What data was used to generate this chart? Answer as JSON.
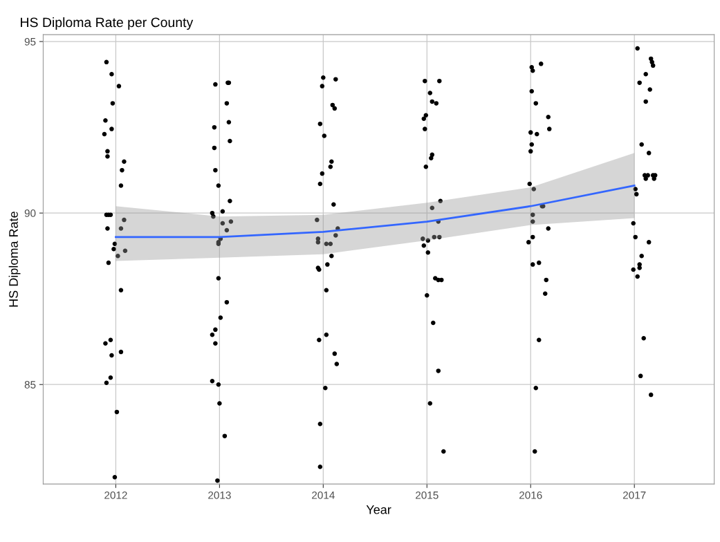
{
  "chart_data": {
    "type": "scatter",
    "title": "HS Diploma Rate per County",
    "xlabel": "Year",
    "ylabel": "HS Diploma Rate",
    "xlim": [
      2011.3,
      2017.77
    ],
    "ylim": [
      82.1,
      95.2
    ],
    "xticks": [
      2012,
      2013,
      2014,
      2015,
      2016,
      2017
    ],
    "yticks": [
      85,
      90,
      95
    ],
    "grid": true,
    "marker": "circle",
    "series": [
      {
        "color": "#000000",
        "x": [
          2011.91,
          2011.96,
          2012.03,
          2011.97,
          2011.9,
          2011.96,
          2011.89,
          2011.92,
          2011.92,
          2012.08,
          2012.06,
          2012.05,
          2011.91,
          2011.93,
          2011.95,
          2011.92,
          2012.08,
          2012.05,
          2011.99,
          2011.98,
          2012.09,
          2012.02,
          2011.93,
          2012.05,
          2011.95,
          2011.9,
          2011.96,
          2012.05,
          2011.95,
          2011.91,
          2012.01,
          2011.99,
          2013.08,
          2013.09,
          2012.96,
          2013.07,
          2013.09,
          2012.95,
          2013.1,
          2012.95,
          2012.96,
          2012.99,
          2013.1,
          2012.93,
          2013.03,
          2012.94,
          2013.11,
          2013.03,
          2013.07,
          2013.01,
          2012.99,
          2012.99,
          2012.99,
          2013.07,
          2013.01,
          2012.96,
          2012.93,
          2012.96,
          2012.93,
          2012.99,
          2013.0,
          2013.05,
          2012.98,
          2014.0,
          2014.12,
          2013.99,
          2014.09,
          2014.11,
          2013.97,
          2014.01,
          2014.08,
          2014.07,
          2013.99,
          2013.97,
          2014.1,
          2013.94,
          2014.14,
          2014.12,
          2013.95,
          2013.95,
          2014.03,
          2014.07,
          2014.08,
          2014.04,
          2013.96,
          2013.95,
          2014.03,
          2014.03,
          2013.96,
          2014.11,
          2014.13,
          2014.02,
          2013.97,
          2013.97,
          2014.98,
          2015.12,
          2015.03,
          2015.05,
          2015.09,
          2014.99,
          2014.97,
          2014.98,
          2015.05,
          2015.04,
          2014.99,
          2015.13,
          2015.05,
          2015.11,
          2014.96,
          2015.01,
          2015.07,
          2015.12,
          2014.97,
          2015.01,
          2015.08,
          2015.11,
          2015.14,
          2015.0,
          2015.06,
          2015.11,
          2015.03,
          2015.16,
          2016.1,
          2016.01,
          2016.02,
          2016.01,
          2016.05,
          2016.17,
          2016.18,
          2016.0,
          2016.06,
          2016.01,
          2016.0,
          2015.99,
          2016.03,
          2016.11,
          2016.12,
          2016.02,
          2016.02,
          2016.17,
          2016.02,
          2015.98,
          2016.02,
          2016.08,
          2016.15,
          2016.14,
          2016.08,
          2016.05,
          2016.04,
          2017.03,
          2017.16,
          2017.17,
          2017.18,
          2017.11,
          2017.05,
          2017.15,
          2017.11,
          2017.07,
          2017.14,
          2017.1,
          2017.13,
          2017.18,
          2017.2,
          2017.11,
          2017.19,
          2017.01,
          2017.02,
          2016.99,
          2017.01,
          2017.14,
          2017.07,
          2017.05,
          2016.99,
          2017.05,
          2017.03,
          2017.09,
          2017.06,
          2017.16
        ],
        "values": [
          94.4,
          94.05,
          93.7,
          93.2,
          92.7,
          92.45,
          92.3,
          91.8,
          91.65,
          91.5,
          91.25,
          90.8,
          89.95,
          89.95,
          89.95,
          89.55,
          89.8,
          89.55,
          89.1,
          88.95,
          88.9,
          88.75,
          88.55,
          87.75,
          86.3,
          86.2,
          85.85,
          85.95,
          85.2,
          85.05,
          84.2,
          82.3,
          93.8,
          93.8,
          93.75,
          93.2,
          92.65,
          92.5,
          92.1,
          91.9,
          91.25,
          90.8,
          90.35,
          90.0,
          90.05,
          89.9,
          89.75,
          89.7,
          89.5,
          89.25,
          89.15,
          89.1,
          88.1,
          87.4,
          86.95,
          86.6,
          86.45,
          86.2,
          85.1,
          85.0,
          84.45,
          83.5,
          82.2,
          93.95,
          93.9,
          93.7,
          93.15,
          93.05,
          92.6,
          92.25,
          91.5,
          91.35,
          91.15,
          90.85,
          90.25,
          89.8,
          89.55,
          89.35,
          89.25,
          89.15,
          89.1,
          89.1,
          88.75,
          88.5,
          88.35,
          88.4,
          87.75,
          86.45,
          86.3,
          85.9,
          85.6,
          84.9,
          83.85,
          82.6,
          93.85,
          93.85,
          93.5,
          93.25,
          93.2,
          92.85,
          92.75,
          92.45,
          91.7,
          91.6,
          91.35,
          90.35,
          90.15,
          89.75,
          89.25,
          89.2,
          89.3,
          89.3,
          89.05,
          88.85,
          88.1,
          88.05,
          88.05,
          87.6,
          86.8,
          85.4,
          84.45,
          83.05,
          94.35,
          94.25,
          94.15,
          93.55,
          93.2,
          92.8,
          92.45,
          92.35,
          92.3,
          92.0,
          91.8,
          90.85,
          90.7,
          90.2,
          90.2,
          89.95,
          89.75,
          89.55,
          89.3,
          89.15,
          88.5,
          88.55,
          88.05,
          87.65,
          86.3,
          84.9,
          83.05,
          94.8,
          94.5,
          94.4,
          94.3,
          94.05,
          93.8,
          93.6,
          93.25,
          92.0,
          91.75,
          91.1,
          91.1,
          91.1,
          91.1,
          91.0,
          91.0,
          90.7,
          90.55,
          89.7,
          89.3,
          89.15,
          88.75,
          88.5,
          88.35,
          88.4,
          88.15,
          86.35,
          85.25,
          84.7
        ]
      },
      {
        "type": "line",
        "color": "#3366ff",
        "marker": "none",
        "x": [
          2012,
          2013,
          2014,
          2015,
          2016,
          2017
        ],
        "values": [
          89.3,
          89.3,
          89.45,
          89.75,
          90.2,
          90.8
        ],
        "lower": [
          88.6,
          88.7,
          88.8,
          89.2,
          89.65,
          89.85
        ],
        "upper": [
          90.2,
          89.9,
          89.95,
          90.3,
          90.75,
          91.75
        ]
      }
    ]
  }
}
